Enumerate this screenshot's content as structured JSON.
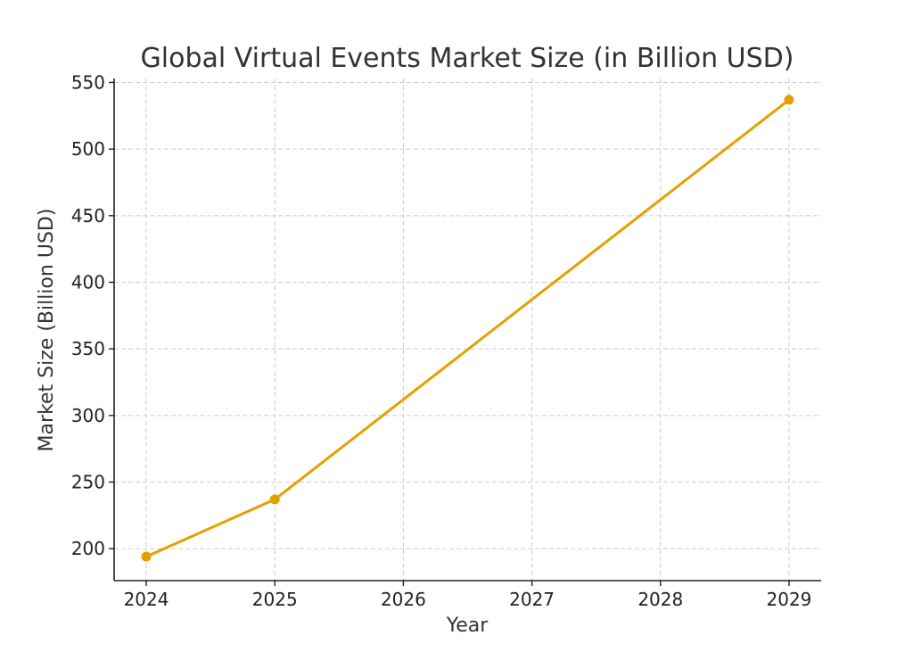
{
  "chart_data": {
    "type": "line",
    "title": "Global Virtual Events Market Size (in Billion USD)",
    "xlabel": "Year",
    "ylabel": "Market Size (Billion USD)",
    "x_ticks": [
      "2024",
      "2025",
      "2026",
      "2027",
      "2028",
      "2029"
    ],
    "y_ticks": [
      200,
      250,
      300,
      350,
      400,
      450,
      500,
      550
    ],
    "xlim": [
      2023.75,
      2029.25
    ],
    "ylim": [
      176,
      553
    ],
    "grid": true,
    "series": [
      {
        "color": "#E69F00",
        "points": [
          {
            "x": 2024,
            "y": 194
          },
          {
            "x": 2025,
            "y": 237
          },
          {
            "x": 2029,
            "y": 537
          }
        ]
      }
    ]
  }
}
